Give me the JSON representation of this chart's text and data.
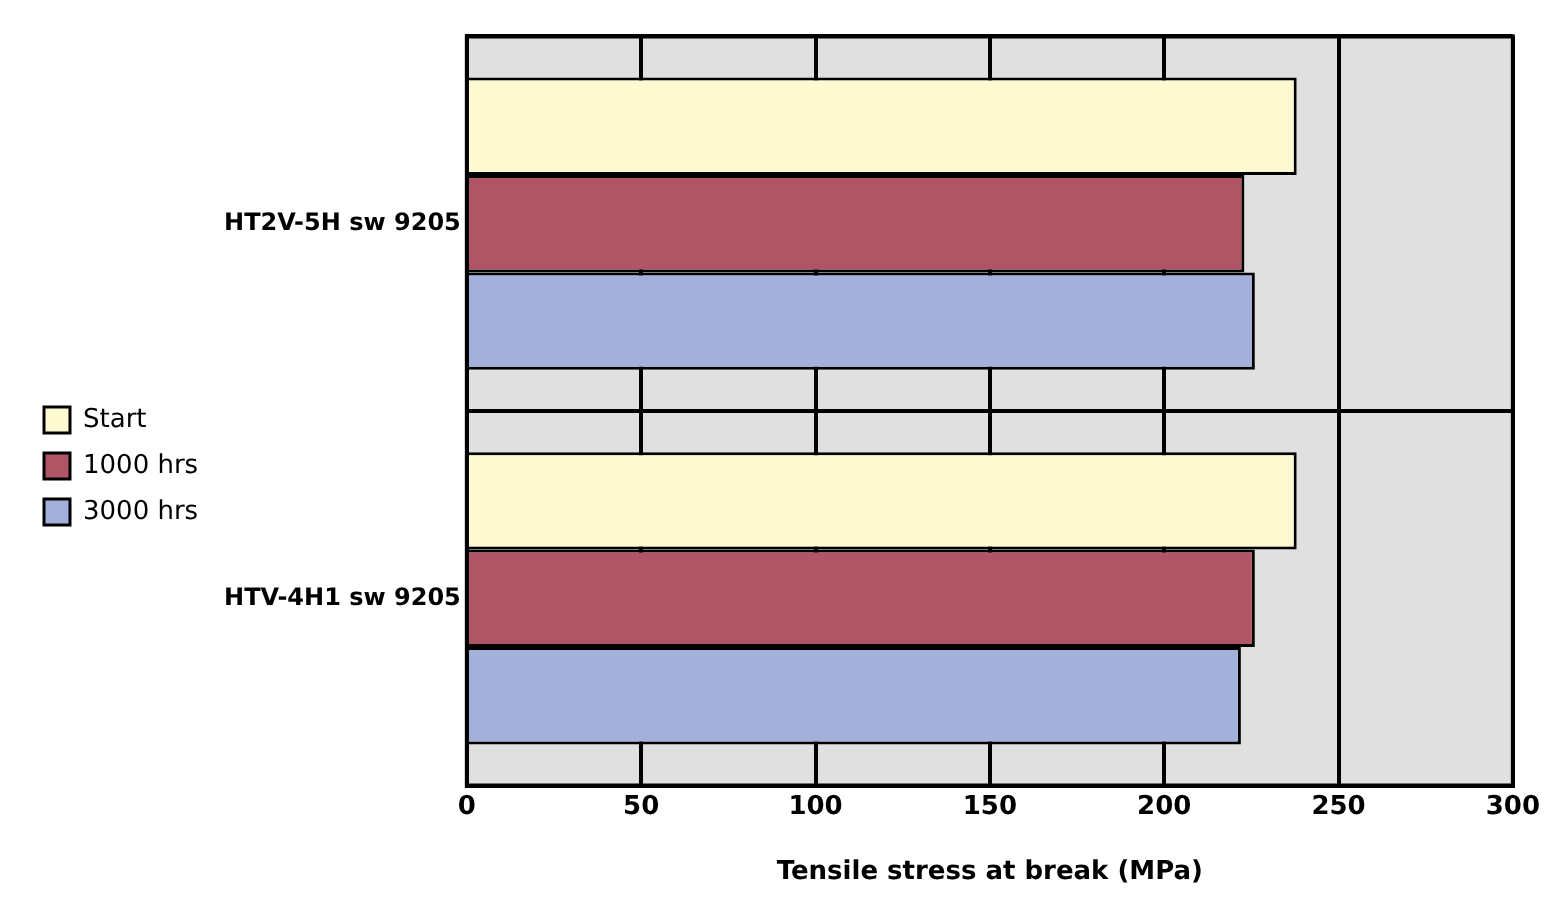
{
  "chart_data": {
    "type": "bar",
    "orientation": "horizontal",
    "xlabel": "Tensile stress at break (MPa)",
    "categories": [
      "HT2V-5H sw 9205",
      "HTV-4H1 sw 9205"
    ],
    "series": [
      {
        "name": "Start",
        "color": "#fdf9d0",
        "values": [
          238,
          238
        ]
      },
      {
        "name": "1000 hrs",
        "color": "#b05566",
        "values": [
          223,
          226
        ]
      },
      {
        "name": "3000 hrs",
        "color": "#a3b0da",
        "values": [
          226,
          222
        ]
      }
    ],
    "xlim": [
      0,
      300
    ],
    "xticks": [
      0,
      50,
      100,
      150,
      200,
      250,
      300
    ],
    "grid": true,
    "legend": "left"
  }
}
